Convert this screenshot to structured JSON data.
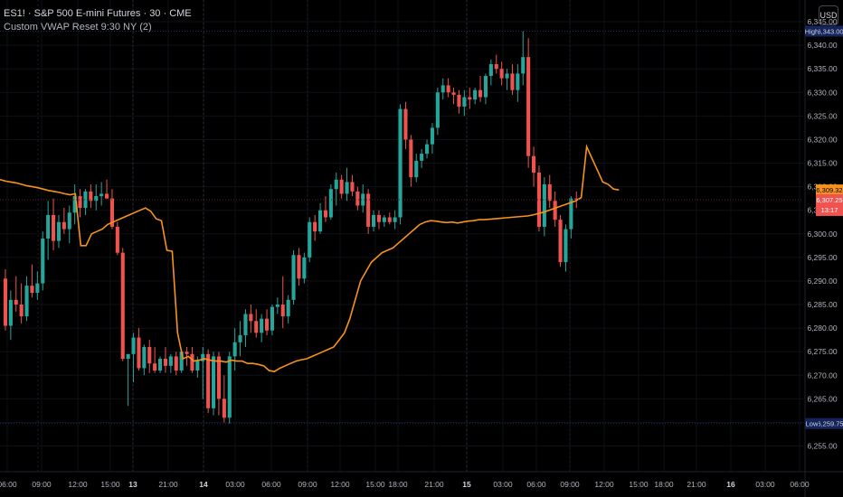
{
  "legend": {
    "symbol_line": "ES1! · S&P 500 E-mini Futures · 30 · CME",
    "indicator_line": "Custom VWAP Reset 9:30 NY (2)"
  },
  "currency_button": "USD",
  "colors": {
    "up": "#26a69a",
    "down": "#ef5350",
    "vwap": "#f7931a",
    "background": "#000000",
    "axis_text": "#b2b5be",
    "high_low_label": "#16245c"
  },
  "chart_data": {
    "type": "candlestick",
    "y_axis": {
      "range": [
        6250.5,
        6347.5
      ],
      "ticks": [
        6345,
        6340,
        6335,
        6330,
        6325,
        6320,
        6315,
        6310,
        6305,
        6300,
        6295,
        6290,
        6285,
        6280,
        6275,
        6270,
        6265,
        6260,
        6255
      ],
      "tick_labels": [
        "6,345.00",
        "6,340.00",
        "6,335.00",
        "6,330.00",
        "6,325.00",
        "6,320.00",
        "6,315.00",
        "6,310.00",
        "6,305.00",
        "6,300.00",
        "6,295.00",
        "6,290.00",
        "6,285.00",
        "6,280.00",
        "6,275.00",
        "6,270.00",
        "6,265.00",
        "6,260.00",
        "6,255.00"
      ]
    },
    "x_axis": {
      "labels": [
        "06:00",
        "09:00",
        "12:00",
        "15:00",
        "13",
        "21:00",
        "14",
        "03:00",
        "06:00",
        "09:00",
        "12:00",
        "15:00",
        "18:00",
        "21:00",
        "15",
        "03:00",
        "06:00",
        "09:00",
        "12:00",
        "15:00",
        "18:00",
        "21:00",
        "16",
        "03:00",
        "06:00"
      ],
      "bold": [
        "13",
        "14",
        "15",
        "16"
      ]
    },
    "price_labels": {
      "high": {
        "label": "High",
        "value": "6,343.00"
      },
      "low": {
        "label": "Low",
        "value": "6,259.75"
      },
      "vwap_last": {
        "value": "6,309.32"
      },
      "last": {
        "value": "6,307.25",
        "countdown": "13:17"
      }
    },
    "candles": [
      [
        6290.5,
        6292.5,
        6279.5,
        6280.5
      ],
      [
        6280.5,
        6288,
        6277.5,
        6286
      ],
      [
        6286,
        6291,
        6283.5,
        6285
      ],
      [
        6285,
        6289.5,
        6281,
        6282.5
      ],
      [
        6282.5,
        6291,
        6281.5,
        6289
      ],
      [
        6289,
        6293.5,
        6286.5,
        6287.5
      ],
      [
        6287.5,
        6292,
        6286,
        6289.5
      ],
      [
        6289.5,
        6300.5,
        6288,
        6299
      ],
      [
        6299,
        6307,
        6294.5,
        6304
      ],
      [
        6304,
        6307.5,
        6296.5,
        6298.5
      ],
      [
        6298.5,
        6304,
        6297,
        6302.5
      ],
      [
        6302.5,
        6305.5,
        6300,
        6301
      ],
      [
        6301,
        6306,
        6298,
        6304.5
      ],
      [
        6304.5,
        6310.5,
        6302,
        6308
      ],
      [
        6308,
        6309.5,
        6303.5,
        6305.5
      ],
      [
        6305.5,
        6309.5,
        6304,
        6309
      ],
      [
        6309,
        6310.5,
        6305.5,
        6307
      ],
      [
        6307,
        6310.5,
        6305,
        6308
      ],
      [
        6308,
        6311,
        6306,
        6308.5
      ],
      [
        6308.5,
        6311.5,
        6307.5,
        6307.5
      ],
      [
        6307.5,
        6309.5,
        6301,
        6301.5
      ],
      [
        6301.5,
        6302.5,
        6295.5,
        6296
      ],
      [
        6296,
        6297,
        6273,
        6273.5
      ],
      [
        6273.5,
        6274.5,
        6263.5,
        6274.5
      ],
      [
        6274.5,
        6279,
        6268.5,
        6278
      ],
      [
        6278,
        6280,
        6271,
        6271.5
      ],
      [
        6271.5,
        6276.5,
        6270,
        6276
      ],
      [
        6276,
        6277.5,
        6270.5,
        6272.5
      ],
      [
        6272.5,
        6276,
        6270.5,
        6271
      ],
      [
        6271,
        6274,
        6270.5,
        6273.5
      ],
      [
        6273.5,
        6276,
        6270.5,
        6272
      ],
      [
        6272,
        6274.5,
        6270.5,
        6274
      ],
      [
        6274,
        6275,
        6270,
        6271
      ],
      [
        6271,
        6275.5,
        6270.5,
        6275
      ],
      [
        6275,
        6276,
        6272,
        6274.5
      ],
      [
        6274.5,
        6276,
        6270.5,
        6271
      ],
      [
        6271,
        6274,
        6269.5,
        6273
      ],
      [
        6273,
        6276,
        6265,
        6274.5
      ],
      [
        6274.5,
        6275.5,
        6262,
        6263
      ],
      [
        6263,
        6275,
        6261.5,
        6274
      ],
      [
        6274,
        6275,
        6261.5,
        6265
      ],
      [
        6265,
        6270,
        6260,
        6261
      ],
      [
        6261,
        6275,
        6259.75,
        6274
      ],
      [
        6274,
        6280,
        6271,
        6277
      ],
      [
        6277,
        6281.5,
        6274,
        6278.5
      ],
      [
        6278.5,
        6284,
        6276,
        6283
      ],
      [
        6283,
        6285,
        6279,
        6281.5
      ],
      [
        6281.5,
        6284,
        6278,
        6279
      ],
      [
        6279,
        6283,
        6277,
        6282
      ],
      [
        6282,
        6284,
        6278.5,
        6279.5
      ],
      [
        6279.5,
        6285,
        6278.5,
        6284.5
      ],
      [
        6284.5,
        6286.5,
        6283,
        6285
      ],
      [
        6285,
        6291,
        6280,
        6282.5
      ],
      [
        6282.5,
        6287,
        6281,
        6286
      ],
      [
        6286,
        6296.5,
        6285,
        6295.5
      ],
      [
        6295.5,
        6297,
        6289,
        6290.5
      ],
      [
        6290.5,
        6296,
        6289.5,
        6295
      ],
      [
        6295,
        6303.5,
        6294,
        6302.5
      ],
      [
        6302.5,
        6304,
        6298.5,
        6300.5
      ],
      [
        6300.5,
        6306.5,
        6300,
        6305
      ],
      [
        6305,
        6308,
        6302.5,
        6303.5
      ],
      [
        6303.5,
        6310.5,
        6303,
        6309.5
      ],
      [
        6309.5,
        6313,
        6306,
        6311.5
      ],
      [
        6311.5,
        6312.5,
        6307.5,
        6308.5
      ],
      [
        6308.5,
        6314,
        6307,
        6311
      ],
      [
        6311,
        6312.5,
        6308,
        6309
      ],
      [
        6309,
        6310,
        6305,
        6306
      ],
      [
        6306,
        6310.5,
        6304.5,
        6308.5
      ],
      [
        6308.5,
        6309.5,
        6300,
        6301.5
      ],
      [
        6301.5,
        6305,
        6300.5,
        6304
      ],
      [
        6304,
        6305,
        6301,
        6302.5
      ],
      [
        6302.5,
        6304,
        6301.5,
        6303.5
      ],
      [
        6303.5,
        6304.5,
        6302,
        6302.5
      ],
      [
        6302.5,
        6305,
        6301,
        6303.5
      ],
      [
        6303.5,
        6327.5,
        6302,
        6326.5
      ],
      [
        6326.5,
        6328,
        6318,
        6320
      ],
      [
        6320,
        6321,
        6310,
        6312
      ],
      [
        6312,
        6317,
        6311,
        6315.5
      ],
      [
        6315.5,
        6318,
        6314,
        6317
      ],
      [
        6317,
        6320,
        6316,
        6319
      ],
      [
        6319,
        6323.5,
        6317,
        6322.5
      ],
      [
        6322.5,
        6331,
        6321,
        6330
      ],
      [
        6330,
        6333,
        6328.5,
        6331.5
      ],
      [
        6331.5,
        6333,
        6329,
        6330
      ],
      [
        6330,
        6331,
        6327.5,
        6329.5
      ],
      [
        6329.5,
        6330.5,
        6325.5,
        6327
      ],
      [
        6327,
        6330.5,
        6325,
        6329
      ],
      [
        6329,
        6331,
        6326.5,
        6328.5
      ],
      [
        6328.5,
        6331,
        6327.5,
        6330.5
      ],
      [
        6330.5,
        6333.5,
        6328,
        6329
      ],
      [
        6329,
        6334,
        6327.5,
        6333.5
      ],
      [
        6333.5,
        6337,
        6331.5,
        6336
      ],
      [
        6336,
        6338,
        6334,
        6335
      ],
      [
        6335,
        6336.5,
        6331.5,
        6333
      ],
      [
        6333,
        6335,
        6330.5,
        6334
      ],
      [
        6334,
        6336,
        6329.5,
        6330.5
      ],
      [
        6330.5,
        6336,
        6328,
        6334
      ],
      [
        6334,
        6343,
        6331.5,
        6337.5
      ],
      [
        6337.5,
        6341.5,
        6314,
        6316.5
      ],
      [
        6316.5,
        6318.5,
        6310,
        6313
      ],
      [
        6313,
        6314.5,
        6300.5,
        6301.5
      ],
      [
        6301.5,
        6312,
        6299.5,
        6310.5
      ],
      [
        6310.5,
        6312.5,
        6305.5,
        6307
      ],
      [
        6307,
        6309,
        6301.5,
        6303
      ],
      [
        6303,
        6304,
        6293,
        6294
      ],
      [
        6294,
        6302,
        6292,
        6301
      ],
      [
        6301,
        6308,
        6299,
        6307.5
      ],
      [
        6307.5,
        6309,
        6305.5,
        6307.25
      ]
    ],
    "vwap": [
      6311.5,
      6311.2,
      6311,
      6310.8,
      6310.5,
      6310.2,
      6310,
      6309.8,
      6309.5,
      6309.2,
      6309,
      6308.8,
      6308.5,
      6308.3,
      6308.5,
      6297.5,
      6297.5,
      6300,
      6300.5,
      6301,
      6302,
      6302.5,
      6303,
      6303.5,
      6304,
      6304.5,
      6305,
      6305.5,
      6304.8,
      6303.2,
      6302.8,
      6296.5,
      6296.3,
      6279,
      6273.5,
      6274,
      6273,
      6273.2,
      6273.5,
      6273.2,
      6273,
      6273,
      6272.8,
      6273.2,
      6273,
      6273,
      6272.5,
      6272.5,
      6272.3,
      6272,
      6271,
      6270.8,
      6271.5,
      6272,
      6272.5,
      6273,
      6273.3,
      6273.5,
      6274,
      6274.5,
      6275,
      6275.5,
      6276,
      6277.5,
      6279,
      6282,
      6286,
      6290,
      6292,
      6294,
      6295,
      6296,
      6296.5,
      6297,
      6298,
      6299,
      6300,
      6301,
      6302,
      6302.5,
      6302.8,
      6302.7,
      6302.5,
      6302.4,
      6302.5,
      6302.3,
      6302.5,
      6302.7,
      6302.8,
      6303,
      6303,
      6303.1,
      6303.2,
      6303.3,
      6303.4,
      6303.5,
      6303.6,
      6303.7,
      6303.8,
      6304,
      6304.3,
      6304.6,
      6305,
      6305.4,
      6305.8,
      6306.2,
      6306.6,
      6307,
      6307.7,
      6318.5,
      6316,
      6313.5,
      6311,
      6310.5,
      6309.5,
      6309.32
    ]
  }
}
